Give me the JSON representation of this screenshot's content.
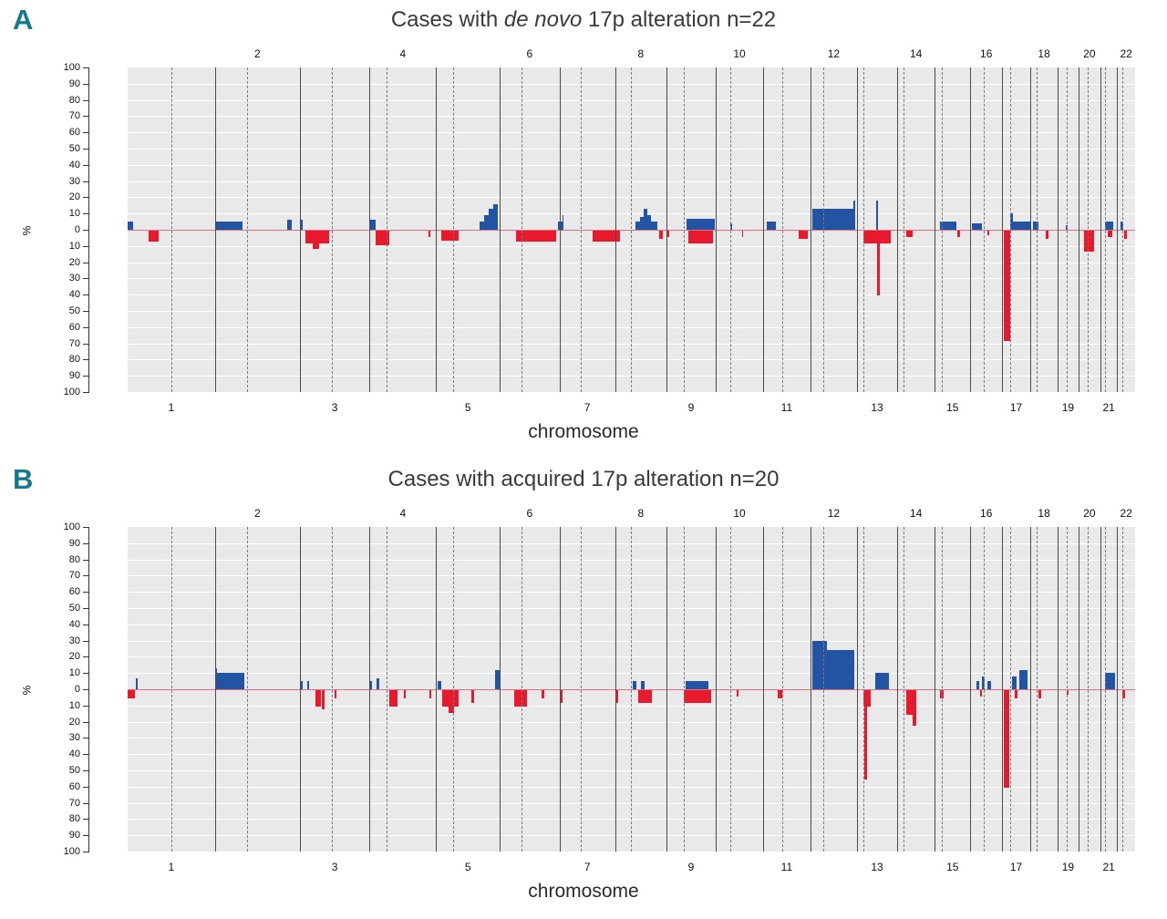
{
  "panels": [
    {
      "letter": "A",
      "title_prefix": "Cases with ",
      "title_italic": "de novo",
      "title_suffix": " 17p alteration n=22"
    },
    {
      "letter": "B",
      "title_prefix": "Cases with acquired 17p alteration n=20",
      "title_italic": "",
      "title_suffix": ""
    }
  ],
  "chart_data": {
    "type": "bar",
    "subtype": "genome-wide-copy-number-alteration-frequency",
    "xlabel": "chromosome",
    "ylabel": "%",
    "ylim": [
      -100,
      100
    ],
    "ytick_labels": [
      "100",
      "90",
      "80",
      "70",
      "60",
      "50",
      "40",
      "30",
      "20",
      "10",
      "0",
      "10",
      "20",
      "30",
      "40",
      "50",
      "60",
      "70",
      "80",
      "90",
      "100"
    ],
    "top_axis_labels": [
      "2",
      "4",
      "6",
      "8",
      "10",
      "12",
      "14",
      "16",
      "18",
      "20",
      "22"
    ],
    "bottom_axis_labels": [
      "1",
      "3",
      "5",
      "7",
      "9",
      "11",
      "13",
      "15",
      "17",
      "19",
      "21"
    ],
    "gain_color": "#2353a3",
    "loss_color": "#e8192d",
    "baseline_color": "#de7085",
    "plot_background": "#e9e9e9",
    "chromosomes": [
      {
        "name": "1",
        "size": 249,
        "centromere": 0.5
      },
      {
        "name": "2",
        "size": 243,
        "centromere": 0.38
      },
      {
        "name": "3",
        "size": 198,
        "centromere": 0.46
      },
      {
        "name": "4",
        "size": 191,
        "centromere": 0.26
      },
      {
        "name": "5",
        "size": 181,
        "centromere": 0.27
      },
      {
        "name": "6",
        "size": 171,
        "centromere": 0.36
      },
      {
        "name": "7",
        "size": 159,
        "centromere": 0.38
      },
      {
        "name": "8",
        "size": 146,
        "centromere": 0.31
      },
      {
        "name": "9",
        "size": 141,
        "centromere": 0.35
      },
      {
        "name": "10",
        "size": 135,
        "centromere": 0.3
      },
      {
        "name": "11",
        "size": 135,
        "centromere": 0.4
      },
      {
        "name": "12",
        "size": 133,
        "centromere": 0.27
      },
      {
        "name": "13",
        "size": 115,
        "centromere": 0.16
      },
      {
        "name": "14",
        "size": 107,
        "centromere": 0.16
      },
      {
        "name": "15",
        "size": 102,
        "centromere": 0.19
      },
      {
        "name": "16",
        "size": 90,
        "centromere": 0.41
      },
      {
        "name": "17",
        "size": 81,
        "centromere": 0.3
      },
      {
        "name": "18",
        "size": 78,
        "centromere": 0.22
      },
      {
        "name": "19",
        "size": 59,
        "centromere": 0.42
      },
      {
        "name": "20",
        "size": 63,
        "centromere": 0.44
      },
      {
        "name": "21",
        "size": 48,
        "centromere": 0.27
      },
      {
        "name": "22",
        "size": 51,
        "centromere": 0.29
      }
    ],
    "panels": [
      {
        "title": "Cases with de novo 17p alteration n=22",
        "n": 22,
        "segments": [
          {
            "chrom": "1",
            "start": 0.0,
            "end": 0.065,
            "value": 5
          },
          {
            "chrom": "1",
            "start": 0.24,
            "end": 0.36,
            "value": -7
          },
          {
            "chrom": "2",
            "start": 0.0,
            "end": 0.33,
            "value": 5
          },
          {
            "chrom": "2",
            "start": 0.85,
            "end": 0.9,
            "value": 6
          },
          {
            "chrom": "3",
            "start": 0.0,
            "end": 0.04,
            "value": 6
          },
          {
            "chrom": "3",
            "start": 0.08,
            "end": 0.42,
            "value": -8
          },
          {
            "chrom": "3",
            "start": 0.19,
            "end": 0.27,
            "value": -11
          },
          {
            "chrom": "4",
            "start": 0.0,
            "end": 0.1,
            "value": 6
          },
          {
            "chrom": "4",
            "start": 0.1,
            "end": 0.3,
            "value": -9
          },
          {
            "chrom": "4",
            "start": 0.88,
            "end": 0.91,
            "value": -4
          },
          {
            "chrom": "5",
            "start": 0.08,
            "end": 0.35,
            "value": -6
          },
          {
            "chrom": "5",
            "start": 0.68,
            "end": 0.76,
            "value": 5
          },
          {
            "chrom": "5",
            "start": 0.76,
            "end": 0.83,
            "value": 9
          },
          {
            "chrom": "5",
            "start": 0.83,
            "end": 0.9,
            "value": 13
          },
          {
            "chrom": "5",
            "start": 0.9,
            "end": 0.97,
            "value": 16
          },
          {
            "chrom": "6",
            "start": 0.28,
            "end": 0.95,
            "value": -7
          },
          {
            "chrom": "6",
            "start": 0.97,
            "end": 1.0,
            "value": 5
          },
          {
            "chrom": "7",
            "start": 0.0,
            "end": 0.06,
            "value": 5
          },
          {
            "chrom": "7",
            "start": 0.05,
            "end": 0.07,
            "value": 9
          },
          {
            "chrom": "7",
            "start": 0.6,
            "end": 1.0,
            "value": -7
          },
          {
            "chrom": "8",
            "start": 0.0,
            "end": 0.1,
            "value": -7
          },
          {
            "chrom": "8",
            "start": 0.4,
            "end": 0.48,
            "value": 5
          },
          {
            "chrom": "8",
            "start": 0.48,
            "end": 0.55,
            "value": 8
          },
          {
            "chrom": "8",
            "start": 0.55,
            "end": 0.62,
            "value": 13
          },
          {
            "chrom": "8",
            "start": 0.62,
            "end": 0.7,
            "value": 9
          },
          {
            "chrom": "8",
            "start": 0.7,
            "end": 0.82,
            "value": 5
          },
          {
            "chrom": "8",
            "start": 0.86,
            "end": 0.93,
            "value": -5
          },
          {
            "chrom": "9",
            "start": 0.0,
            "end": 0.05,
            "value": -4
          },
          {
            "chrom": "9",
            "start": 0.4,
            "end": 0.98,
            "value": 7
          },
          {
            "chrom": "9",
            "start": 0.45,
            "end": 0.95,
            "value": -8
          },
          {
            "chrom": "10",
            "start": 0.3,
            "end": 0.34,
            "value": 4
          },
          {
            "chrom": "10",
            "start": 0.55,
            "end": 0.58,
            "value": -4
          },
          {
            "chrom": "11",
            "start": 0.08,
            "end": 0.28,
            "value": 5
          },
          {
            "chrom": "11",
            "start": 0.75,
            "end": 0.95,
            "value": -5
          },
          {
            "chrom": "12",
            "start": 0.04,
            "end": 0.96,
            "value": 13
          },
          {
            "chrom": "12",
            "start": 0.93,
            "end": 0.96,
            "value": 18
          },
          {
            "chrom": "13",
            "start": 0.15,
            "end": 0.85,
            "value": -8
          },
          {
            "chrom": "13",
            "start": 0.48,
            "end": 0.52,
            "value": 18
          },
          {
            "chrom": "13",
            "start": 0.5,
            "end": 0.56,
            "value": -40
          },
          {
            "chrom": "14",
            "start": 0.25,
            "end": 0.4,
            "value": -4
          },
          {
            "chrom": "15",
            "start": 0.15,
            "end": 0.6,
            "value": 5
          },
          {
            "chrom": "15",
            "start": 0.63,
            "end": 0.72,
            "value": -4
          },
          {
            "chrom": "16",
            "start": 0.05,
            "end": 0.35,
            "value": 4
          },
          {
            "chrom": "16",
            "start": 0.55,
            "end": 0.6,
            "value": -3
          },
          {
            "chrom": "17",
            "start": 0.05,
            "end": 0.28,
            "value": -68
          },
          {
            "chrom": "17",
            "start": 0.3,
            "end": 0.4,
            "value": 10
          },
          {
            "chrom": "17",
            "start": 0.4,
            "end": 1.0,
            "value": 5
          },
          {
            "chrom": "18",
            "start": 0.08,
            "end": 0.28,
            "value": 5
          },
          {
            "chrom": "18",
            "start": 0.55,
            "end": 0.65,
            "value": -5
          },
          {
            "chrom": "19",
            "start": 0.4,
            "end": 0.46,
            "value": 3
          },
          {
            "chrom": "20",
            "start": 0.25,
            "end": 0.7,
            "value": -13
          },
          {
            "chrom": "21",
            "start": 0.25,
            "end": 0.75,
            "value": 5
          },
          {
            "chrom": "21",
            "start": 0.45,
            "end": 0.7,
            "value": -4
          },
          {
            "chrom": "22",
            "start": 0.18,
            "end": 0.33,
            "value": 5
          },
          {
            "chrom": "22",
            "start": 0.38,
            "end": 0.52,
            "value": -5
          }
        ]
      },
      {
        "title": "Cases with acquired 17p alteration n=20",
        "n": 20,
        "segments": [
          {
            "chrom": "1",
            "start": 0.0,
            "end": 0.08,
            "value": -5
          },
          {
            "chrom": "1",
            "start": 0.09,
            "end": 0.12,
            "value": 7
          },
          {
            "chrom": "2",
            "start": 0.01,
            "end": 0.03,
            "value": 13
          },
          {
            "chrom": "2",
            "start": 0.03,
            "end": 0.35,
            "value": 10
          },
          {
            "chrom": "3",
            "start": 0.0,
            "end": 0.04,
            "value": 5
          },
          {
            "chrom": "3",
            "start": 0.1,
            "end": 0.13,
            "value": 5
          },
          {
            "chrom": "3",
            "start": 0.22,
            "end": 0.3,
            "value": -10
          },
          {
            "chrom": "3",
            "start": 0.32,
            "end": 0.36,
            "value": -12
          },
          {
            "chrom": "3",
            "start": 0.5,
            "end": 0.53,
            "value": -5
          },
          {
            "chrom": "4",
            "start": 0.0,
            "end": 0.04,
            "value": 5
          },
          {
            "chrom": "4",
            "start": 0.11,
            "end": 0.15,
            "value": 7
          },
          {
            "chrom": "4",
            "start": 0.3,
            "end": 0.42,
            "value": -10
          },
          {
            "chrom": "4",
            "start": 0.52,
            "end": 0.55,
            "value": -5
          },
          {
            "chrom": "4",
            "start": 0.9,
            "end": 0.93,
            "value": -5
          },
          {
            "chrom": "5",
            "start": 0.02,
            "end": 0.08,
            "value": 5
          },
          {
            "chrom": "5",
            "start": 0.1,
            "end": 0.35,
            "value": -10
          },
          {
            "chrom": "5",
            "start": 0.2,
            "end": 0.28,
            "value": -14
          },
          {
            "chrom": "5",
            "start": 0.55,
            "end": 0.6,
            "value": -8
          },
          {
            "chrom": "5",
            "start": 0.93,
            "end": 1.0,
            "value": 12
          },
          {
            "chrom": "6",
            "start": 0.25,
            "end": 0.45,
            "value": -10
          },
          {
            "chrom": "6",
            "start": 0.7,
            "end": 0.74,
            "value": -5
          },
          {
            "chrom": "7",
            "start": 0.0,
            "end": 0.05,
            "value": -8
          },
          {
            "chrom": "8",
            "start": 0.0,
            "end": 0.06,
            "value": -8
          },
          {
            "chrom": "8",
            "start": 0.35,
            "end": 0.42,
            "value": 5
          },
          {
            "chrom": "8",
            "start": 0.5,
            "end": 0.58,
            "value": 5
          },
          {
            "chrom": "8",
            "start": 0.45,
            "end": 0.72,
            "value": -8
          },
          {
            "chrom": "9",
            "start": 0.38,
            "end": 0.85,
            "value": 5
          },
          {
            "chrom": "9",
            "start": 0.35,
            "end": 0.9,
            "value": -8
          },
          {
            "chrom": "10",
            "start": 0.45,
            "end": 0.49,
            "value": -4
          },
          {
            "chrom": "11",
            "start": 0.3,
            "end": 0.4,
            "value": -5
          },
          {
            "chrom": "12",
            "start": 0.05,
            "end": 0.35,
            "value": 30
          },
          {
            "chrom": "12",
            "start": 0.35,
            "end": 0.95,
            "value": 24
          },
          {
            "chrom": "13",
            "start": 0.15,
            "end": 0.35,
            "value": -10
          },
          {
            "chrom": "13",
            "start": 0.19,
            "end": 0.24,
            "value": -55
          },
          {
            "chrom": "13",
            "start": 0.45,
            "end": 0.8,
            "value": 10
          },
          {
            "chrom": "14",
            "start": 0.25,
            "end": 0.5,
            "value": -15
          },
          {
            "chrom": "14",
            "start": 0.42,
            "end": 0.5,
            "value": -22
          },
          {
            "chrom": "15",
            "start": 0.15,
            "end": 0.25,
            "value": -5
          },
          {
            "chrom": "16",
            "start": 0.2,
            "end": 0.28,
            "value": 5
          },
          {
            "chrom": "16",
            "start": 0.35,
            "end": 0.45,
            "value": 8
          },
          {
            "chrom": "16",
            "start": 0.3,
            "end": 0.35,
            "value": -4
          },
          {
            "chrom": "16",
            "start": 0.55,
            "end": 0.65,
            "value": 5
          },
          {
            "chrom": "17",
            "start": 0.05,
            "end": 0.25,
            "value": -60
          },
          {
            "chrom": "17",
            "start": 0.35,
            "end": 0.5,
            "value": 8
          },
          {
            "chrom": "17",
            "start": 0.45,
            "end": 0.55,
            "value": -5
          },
          {
            "chrom": "17",
            "start": 0.6,
            "end": 0.9,
            "value": 12
          },
          {
            "chrom": "18",
            "start": 0.3,
            "end": 0.4,
            "value": -5
          },
          {
            "chrom": "19",
            "start": 0.45,
            "end": 0.5,
            "value": -3
          },
          {
            "chrom": "21",
            "start": 0.3,
            "end": 0.85,
            "value": 10
          },
          {
            "chrom": "22",
            "start": 0.3,
            "end": 0.45,
            "value": -5
          }
        ]
      }
    ]
  }
}
